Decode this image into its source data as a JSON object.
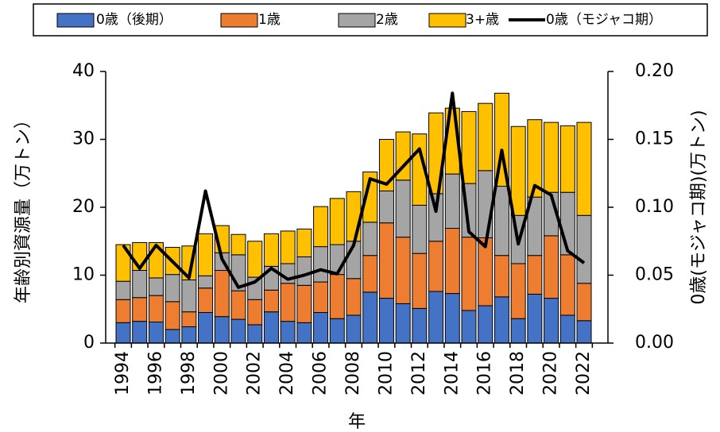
{
  "chart_data": {
    "type": "bar",
    "stacked": true,
    "y_label": "年齢別資源量（万トン）",
    "y2_label": "0歳(モジャコ期)(万トン)",
    "x_label": "年",
    "categories": [
      "1994",
      null,
      "1996",
      null,
      "1998",
      null,
      "2000",
      null,
      "2002",
      null,
      "2004",
      null,
      "2006",
      null,
      "2008",
      null,
      "2010",
      null,
      "2012",
      null,
      "2014",
      null,
      "2016",
      null,
      "2018",
      null,
      "2020",
      null,
      "2022"
    ],
    "ylim": [
      0,
      40
    ],
    "yticks": [
      0,
      10,
      20,
      30,
      40
    ],
    "y2lim": [
      0,
      0.2
    ],
    "y2ticks": [
      {
        "value": 0,
        "label": "0.00"
      },
      0.05,
      {
        "value": 0.1,
        "label": "0.10"
      },
      0.15,
      {
        "value": 0.2,
        "label": "0.20"
      }
    ],
    "series": [
      {
        "name": "0歳（後期）",
        "type": "bar",
        "color": "#4472c4",
        "values": [
          3.0,
          3.2,
          3.1,
          2.0,
          2.4,
          4.5,
          3.9,
          3.5,
          2.7,
          4.6,
          3.2,
          3.0,
          4.5,
          3.6,
          4.1,
          7.5,
          6.6,
          5.8,
          5.1,
          7.6,
          7.3,
          4.8,
          5.5,
          6.8,
          3.6,
          7.2,
          6.6,
          4.1,
          3.3
        ]
      },
      {
        "name": "1歳",
        "type": "bar",
        "color": "#ed7d31",
        "values": [
          3.4,
          3.5,
          3.9,
          4.1,
          2.2,
          3.6,
          6.8,
          4.2,
          3.7,
          3.2,
          5.6,
          5.5,
          4.5,
          6.5,
          5.4,
          5.4,
          11.1,
          9.8,
          8.1,
          7.4,
          9.6,
          10.8,
          10.0,
          6.1,
          8.1,
          5.7,
          9.2,
          8.9,
          5.5
        ]
      },
      {
        "name": "2歳",
        "type": "bar",
        "color": "#a5a5a5",
        "values": [
          2.7,
          4.0,
          2.6,
          4.0,
          4.7,
          1.8,
          2.6,
          5.3,
          3.3,
          3.5,
          2.9,
          4.2,
          5.2,
          4.4,
          5.5,
          4.9,
          4.7,
          8.4,
          7.1,
          7.0,
          8.0,
          7.9,
          9.9,
          10.2,
          7.1,
          8.6,
          6.4,
          9.2,
          10.0
        ]
      },
      {
        "name": "3+歳",
        "type": "bar",
        "color": "#ffc000",
        "values": [
          5.4,
          4.1,
          5.2,
          4.0,
          5.0,
          6.2,
          4.0,
          3.0,
          5.3,
          4.8,
          4.8,
          4.1,
          5.9,
          6.8,
          7.3,
          7.4,
          7.6,
          7.1,
          10.5,
          11.9,
          9.7,
          10.6,
          9.9,
          13.7,
          13.1,
          11.4,
          10.3,
          9.8,
          13.7
        ]
      },
      {
        "name": "0歳（モジャコ期）",
        "type": "line",
        "axis": "y2",
        "color": "#000000",
        "values": [
          0.072,
          0.055,
          0.072,
          0.06,
          0.048,
          0.112,
          0.062,
          0.041,
          0.045,
          0.055,
          0.047,
          0.05,
          0.054,
          0.051,
          0.072,
          0.121,
          0.117,
          0.13,
          0.143,
          0.097,
          0.184,
          0.082,
          0.071,
          0.142,
          0.073,
          0.116,
          0.109,
          0.068,
          0.059
        ]
      }
    ]
  }
}
